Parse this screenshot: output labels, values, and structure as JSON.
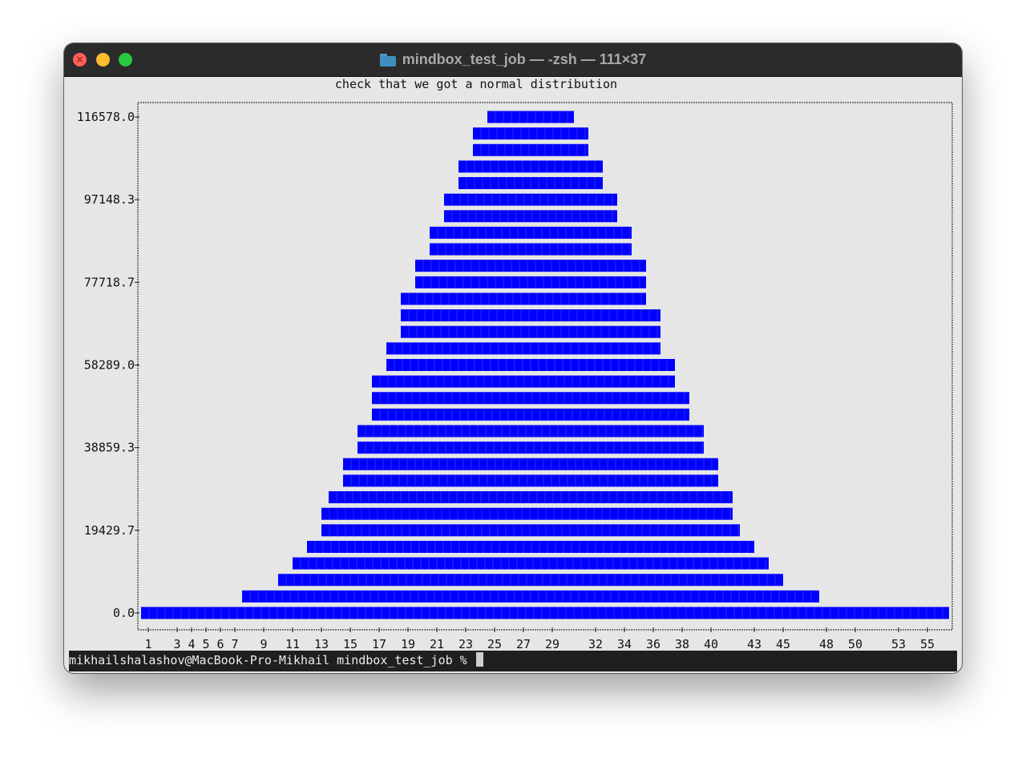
{
  "window": {
    "title": "mindbox_test_job — -zsh — 111×37",
    "folder_icon": "folder-icon",
    "buttons": [
      "close",
      "minimize",
      "zoom"
    ]
  },
  "terminal": {
    "prompt": "mikhailshalashov@MacBook-Pro-Mikhail mindbox_test_job % "
  },
  "chart_data": {
    "type": "bar",
    "orientation": "horizontal",
    "title": "check that we got a normal distribution",
    "bar_color": "#0000ff",
    "y_ticks": [
      "116578.0",
      "97148.3",
      "77718.7",
      "58289.0",
      "38859.3",
      "19429.7",
      "0.0"
    ],
    "x_ticks": [
      "1",
      "3",
      "4",
      "5",
      "6",
      "7",
      "9",
      "11",
      "13",
      "15",
      "17",
      "19",
      "21",
      "23",
      "25",
      "27",
      "29",
      "32",
      "34",
      "36",
      "38",
      "40",
      "43",
      "45",
      "48",
      "50",
      "53",
      "55"
    ],
    "ylim": [
      0,
      116578.0
    ],
    "bars": [
      {
        "y": 0,
        "x_start": 0,
        "x_end": 56
      },
      {
        "y": 3886,
        "x_start": 7,
        "x_end": 47
      },
      {
        "y": 7772,
        "x_start": 9.5,
        "x_end": 44.5
      },
      {
        "y": 11658,
        "x_start": 10.5,
        "x_end": 43.5
      },
      {
        "y": 15543,
        "x_start": 11.5,
        "x_end": 42.5
      },
      {
        "y": 19430,
        "x_start": 12.5,
        "x_end": 41.5
      },
      {
        "y": 23315,
        "x_start": 12.5,
        "x_end": 41
      },
      {
        "y": 27201,
        "x_start": 13,
        "x_end": 41
      },
      {
        "y": 31087,
        "x_start": 14,
        "x_end": 40
      },
      {
        "y": 34973,
        "x_start": 14,
        "x_end": 40
      },
      {
        "y": 38859,
        "x_start": 15,
        "x_end": 39
      },
      {
        "y": 42745,
        "x_start": 15,
        "x_end": 39
      },
      {
        "y": 46630,
        "x_start": 16,
        "x_end": 38
      },
      {
        "y": 50516,
        "x_start": 16,
        "x_end": 38
      },
      {
        "y": 54402,
        "x_start": 16,
        "x_end": 37
      },
      {
        "y": 58289,
        "x_start": 17,
        "x_end": 37
      },
      {
        "y": 62174,
        "x_start": 17,
        "x_end": 36
      },
      {
        "y": 66060,
        "x_start": 18,
        "x_end": 36
      },
      {
        "y": 69946,
        "x_start": 18,
        "x_end": 36
      },
      {
        "y": 73832,
        "x_start": 18,
        "x_end": 35
      },
      {
        "y": 77719,
        "x_start": 19,
        "x_end": 35
      },
      {
        "y": 81604,
        "x_start": 19,
        "x_end": 35
      },
      {
        "y": 85490,
        "x_start": 20,
        "x_end": 34
      },
      {
        "y": 89376,
        "x_start": 20,
        "x_end": 34
      },
      {
        "y": 93262,
        "x_start": 21,
        "x_end": 33
      },
      {
        "y": 97148,
        "x_start": 21,
        "x_end": 33
      },
      {
        "y": 101034,
        "x_start": 22,
        "x_end": 32
      },
      {
        "y": 104920,
        "x_start": 22,
        "x_end": 32
      },
      {
        "y": 108806,
        "x_start": 23,
        "x_end": 31
      },
      {
        "y": 112692,
        "x_start": 23,
        "x_end": 31
      },
      {
        "y": 116578,
        "x_start": 24,
        "x_end": 30
      }
    ]
  }
}
